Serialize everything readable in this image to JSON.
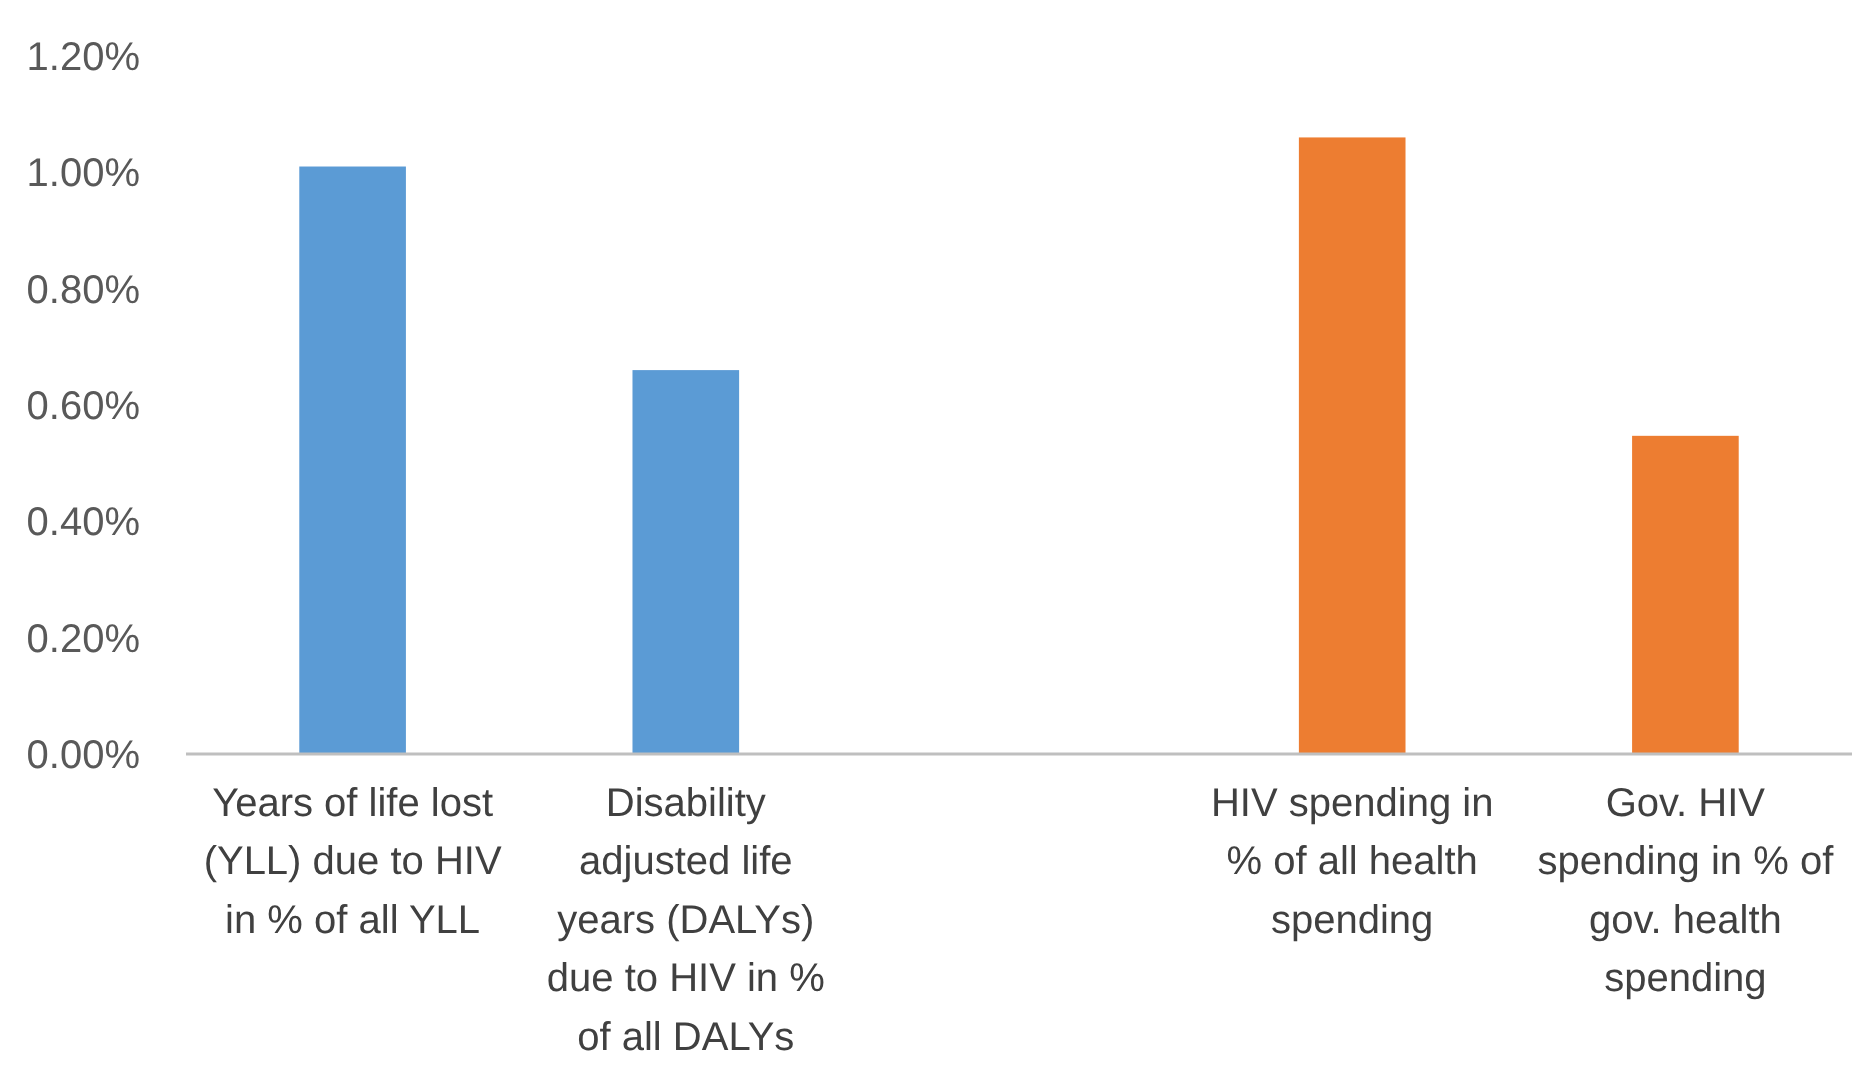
{
  "chart_data": {
    "type": "bar",
    "categories": [
      "Years of life lost (YLL) due to HIV in % of all YLL",
      "Disability adjusted life years (DALYs) due to HIV in % of all DALYs",
      null,
      "HIV spending in % of all health spending",
      "Gov. HIV spending in % of gov. health spending"
    ],
    "values": [
      1.01,
      0.66,
      null,
      1.06,
      0.547
    ],
    "colors": [
      "#5b9bd5",
      "#5b9bd5",
      null,
      "#ed7d31",
      "#ed7d31"
    ],
    "ylim": [
      0,
      1.2
    ],
    "yticks": [
      {
        "value": 0,
        "label": "0.00%"
      },
      {
        "value": 0.2,
        "label": "0.20%"
      },
      {
        "value": 0.4,
        "label": "0.40%"
      },
      {
        "value": 0.6,
        "label": "0.60%"
      },
      {
        "value": 0.8,
        "label": "0.80%"
      },
      {
        "value": 1,
        "label": "1.00%"
      },
      {
        "value": 1.2,
        "label": "1.20%"
      }
    ],
    "grid": false
  }
}
